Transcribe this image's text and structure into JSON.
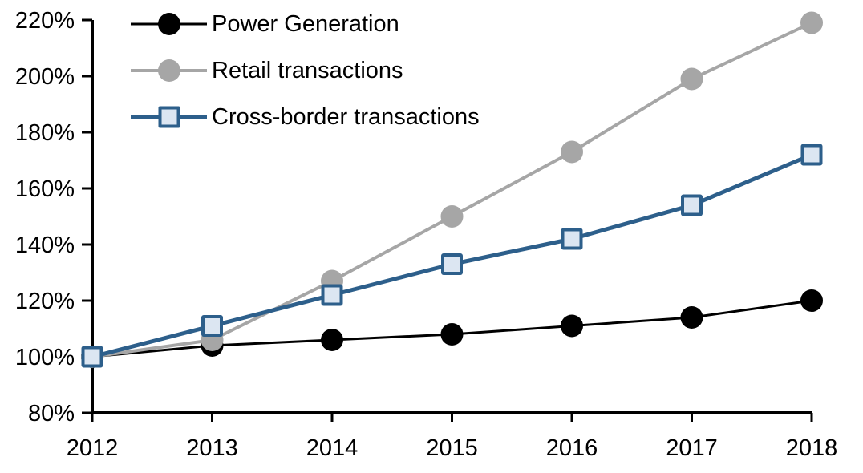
{
  "chart_data": {
    "type": "line",
    "categories": [
      "2012",
      "2013",
      "2014",
      "2015",
      "2016",
      "2017",
      "2018"
    ],
    "y_axis": {
      "min": 80,
      "max": 220,
      "step": 20,
      "tick_labels": [
        "80%",
        "100%",
        "120%",
        "140%",
        "160%",
        "180%",
        "200%",
        "220%"
      ]
    },
    "grid": false,
    "legend_position": "top-left",
    "axis_color": "#000000",
    "series": [
      {
        "name": "Power Generation",
        "color": "#000000",
        "marker": "circle",
        "marker_fill": "#000000",
        "values": [
          100,
          104,
          106,
          108,
          111,
          114,
          120
        ]
      },
      {
        "name": "Retail transactions",
        "color": "#A6A6A6",
        "marker": "circle",
        "marker_fill": "#A6A6A6",
        "values": [
          100,
          106,
          127,
          150,
          173,
          199,
          219
        ]
      },
      {
        "name": "Cross-border transactions",
        "color": "#2D5F8B",
        "marker": "square",
        "marker_fill": "#DCE6F2",
        "values": [
          100,
          111,
          122,
          133,
          142,
          154,
          172
        ]
      }
    ]
  }
}
